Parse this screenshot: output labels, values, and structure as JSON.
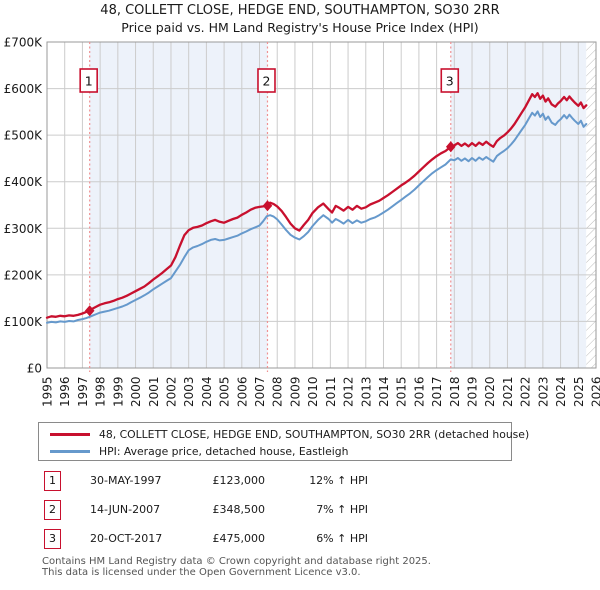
{
  "title": "48, COLLETT CLOSE, HEDGE END, SOUTHAMPTON, SO30 2RR",
  "subtitle": "Price paid vs. HM Land Registry's House Price Index (HPI)",
  "colors": {
    "property_line": "#c8102e",
    "hpi_line": "#6699cc",
    "sale_dash": "#ef9192",
    "band_fill": "#edf2fa",
    "grid": "#cccccc",
    "plot_border": "#999999",
    "hatch_line": "#bbbbbb",
    "marker_box_border": "#c8102e"
  },
  "chart_data": {
    "type": "line",
    "title": "48, COLLETT CLOSE, HEDGE END, SOUTHAMPTON, SO30 2RR",
    "subtitle": "Price paid vs. HM Land Registry's House Price Index (HPI)",
    "ylabel": "",
    "xlabel": "",
    "units": "GBP thousands",
    "ylim_thousands": [
      0,
      700
    ],
    "xlim_years": [
      1995,
      2026
    ],
    "y_tick_values": [
      0,
      100,
      200,
      300,
      400,
      500,
      600,
      700
    ],
    "y_tick_labels": [
      "£0",
      "£100K",
      "£200K",
      "£300K",
      "£400K",
      "£500K",
      "£600K",
      "£700K"
    ],
    "x_tick_years": [
      1995,
      1996,
      1997,
      1998,
      1999,
      2000,
      2001,
      2002,
      2003,
      2004,
      2005,
      2006,
      2007,
      2008,
      2009,
      2010,
      2011,
      2012,
      2013,
      2014,
      2015,
      2016,
      2017,
      2018,
      2019,
      2020,
      2021,
      2022,
      2023,
      2024,
      2025,
      2026
    ],
    "grid": true,
    "legend_position": "below",
    "x": [
      1995.0,
      1995.25,
      1995.5,
      1995.75,
      1996.0,
      1996.25,
      1996.5,
      1996.75,
      1997.0,
      1997.2,
      1997.41,
      1997.6,
      1997.8,
      1998.0,
      1998.25,
      1998.5,
      1998.75,
      1999.0,
      1999.25,
      1999.5,
      1999.75,
      2000.0,
      2000.25,
      2000.5,
      2000.75,
      2001.0,
      2001.25,
      2001.5,
      2001.75,
      2002.0,
      2002.25,
      2002.5,
      2002.75,
      2003.0,
      2003.25,
      2003.5,
      2003.75,
      2004.0,
      2004.25,
      2004.5,
      2004.75,
      2005.0,
      2005.25,
      2005.5,
      2005.75,
      2006.0,
      2006.25,
      2006.5,
      2006.75,
      2007.0,
      2007.2,
      2007.41,
      2007.6,
      2007.8,
      2008.0,
      2008.25,
      2008.5,
      2008.75,
      2009.0,
      2009.25,
      2009.5,
      2009.75,
      2010.0,
      2010.3,
      2010.6,
      2010.9,
      2011.1,
      2011.3,
      2011.5,
      2011.75,
      2012.0,
      2012.25,
      2012.5,
      2012.75,
      2013.0,
      2013.25,
      2013.5,
      2013.75,
      2014.0,
      2014.25,
      2014.5,
      2014.75,
      2015.0,
      2015.25,
      2015.5,
      2015.75,
      2016.0,
      2016.25,
      2016.5,
      2016.75,
      2017.0,
      2017.25,
      2017.5,
      2017.8,
      2018.0,
      2018.2,
      2018.4,
      2018.6,
      2018.8,
      2019.0,
      2019.2,
      2019.4,
      2019.6,
      2019.8,
      2020.0,
      2020.2,
      2020.4,
      2020.6,
      2020.8,
      2021.0,
      2021.2,
      2021.4,
      2021.6,
      2021.8,
      2022.0,
      2022.2,
      2022.4,
      2022.55,
      2022.7,
      2022.85,
      2023.0,
      2023.15,
      2023.3,
      2023.5,
      2023.7,
      2023.85,
      2024.0,
      2024.2,
      2024.35,
      2024.5,
      2024.65,
      2024.8,
      2025.0,
      2025.15,
      2025.3,
      2025.45
    ],
    "series": [
      {
        "name": "48, COLLETT CLOSE, HEDGE END, SOUTHAMPTON, SO30 2RR (detached house)",
        "color": "#c8102e",
        "values_thousands": [
          108,
          111,
          110,
          112,
          111,
          113,
          112,
          114,
          117,
          120,
          123,
          128,
          132,
          136,
          139,
          141,
          144,
          148,
          151,
          155,
          160,
          165,
          170,
          175,
          182,
          190,
          197,
          204,
          212,
          220,
          238,
          262,
          285,
          296,
          301,
          303,
          306,
          311,
          315,
          318,
          314,
          312,
          316,
          320,
          323,
          329,
          334,
          340,
          344,
          346,
          347,
          348.5,
          355,
          352,
          347,
          337,
          324,
          310,
          300,
          295,
          307,
          318,
          333,
          345,
          353,
          341,
          334,
          348,
          344,
          338,
          346,
          340,
          348,
          342,
          345,
          351,
          355,
          359,
          365,
          371,
          378,
          385,
          392,
          398,
          405,
          413,
          422,
          431,
          440,
          448,
          455,
          461,
          466,
          475,
          478,
          483,
          477,
          482,
          476,
          483,
          477,
          484,
          479,
          486,
          480,
          475,
          487,
          494,
          499,
          506,
          514,
          524,
          536,
          548,
          560,
          574,
          588,
          582,
          590,
          578,
          585,
          572,
          579,
          566,
          561,
          568,
          573,
          582,
          575,
          583,
          576,
          570,
          563,
          570,
          558,
          564
        ]
      },
      {
        "name": "HPI: Average price, detached house, Eastleigh",
        "color": "#6699cc",
        "values_thousands": [
          97,
          99,
          98,
          100,
          99,
          101,
          100,
          103,
          105,
          107,
          110,
          113,
          116,
          119,
          121,
          123,
          126,
          129,
          132,
          136,
          141,
          146,
          151,
          156,
          162,
          169,
          175,
          181,
          187,
          193,
          207,
          221,
          238,
          253,
          259,
          262,
          266,
          271,
          275,
          277,
          274,
          275,
          278,
          281,
          284,
          289,
          293,
          298,
          302,
          306,
          315,
          326,
          328,
          325,
          319,
          308,
          296,
          286,
          280,
          276,
          283,
          292,
          305,
          318,
          328,
          320,
          312,
          320,
          316,
          310,
          318,
          311,
          317,
          312,
          315,
          320,
          323,
          328,
          334,
          340,
          347,
          354,
          361,
          368,
          375,
          383,
          392,
          401,
          410,
          418,
          425,
          431,
          437,
          448,
          446,
          451,
          445,
          450,
          444,
          451,
          445,
          452,
          447,
          453,
          448,
          443,
          455,
          461,
          466,
          472,
          480,
          489,
          500,
          511,
          522,
          535,
          548,
          542,
          551,
          539,
          546,
          533,
          540,
          527,
          522,
          529,
          534,
          543,
          536,
          544,
          537,
          531,
          524,
          531,
          518,
          524
        ]
      }
    ],
    "sales": [
      {
        "label": "1",
        "year": 1997.41,
        "price_thousands": 123
      },
      {
        "label": "2",
        "year": 2007.45,
        "price_thousands": 348.5
      },
      {
        "label": "3",
        "year": 2017.8,
        "price_thousands": 475
      }
    ],
    "shaded_bands_years": [
      [
        1997.41,
        2007.45
      ],
      [
        2017.8,
        2025.45
      ]
    ],
    "hatch_band_years": [
      2025.45,
      2026
    ]
  },
  "legend": {
    "items": [
      {
        "label": "48, COLLETT CLOSE, HEDGE END, SOUTHAMPTON, SO30 2RR (detached house)",
        "color": "#c8102e"
      },
      {
        "label": "HPI: Average price, detached house, Eastleigh",
        "color": "#6699cc"
      }
    ]
  },
  "transactions": [
    {
      "num": "1",
      "date": "30-MAY-1997",
      "price": "£123,000",
      "hpi": "12% ↑ HPI"
    },
    {
      "num": "2",
      "date": "14-JUN-2007",
      "price": "£348,500",
      "hpi": "7% ↑ HPI"
    },
    {
      "num": "3",
      "date": "20-OCT-2017",
      "price": "£475,000",
      "hpi": "6% ↑ HPI"
    }
  ],
  "footer": {
    "line1": "Contains HM Land Registry data © Crown copyright and database right 2025.",
    "line2": "This data is licensed under the Open Government Licence v3.0."
  }
}
